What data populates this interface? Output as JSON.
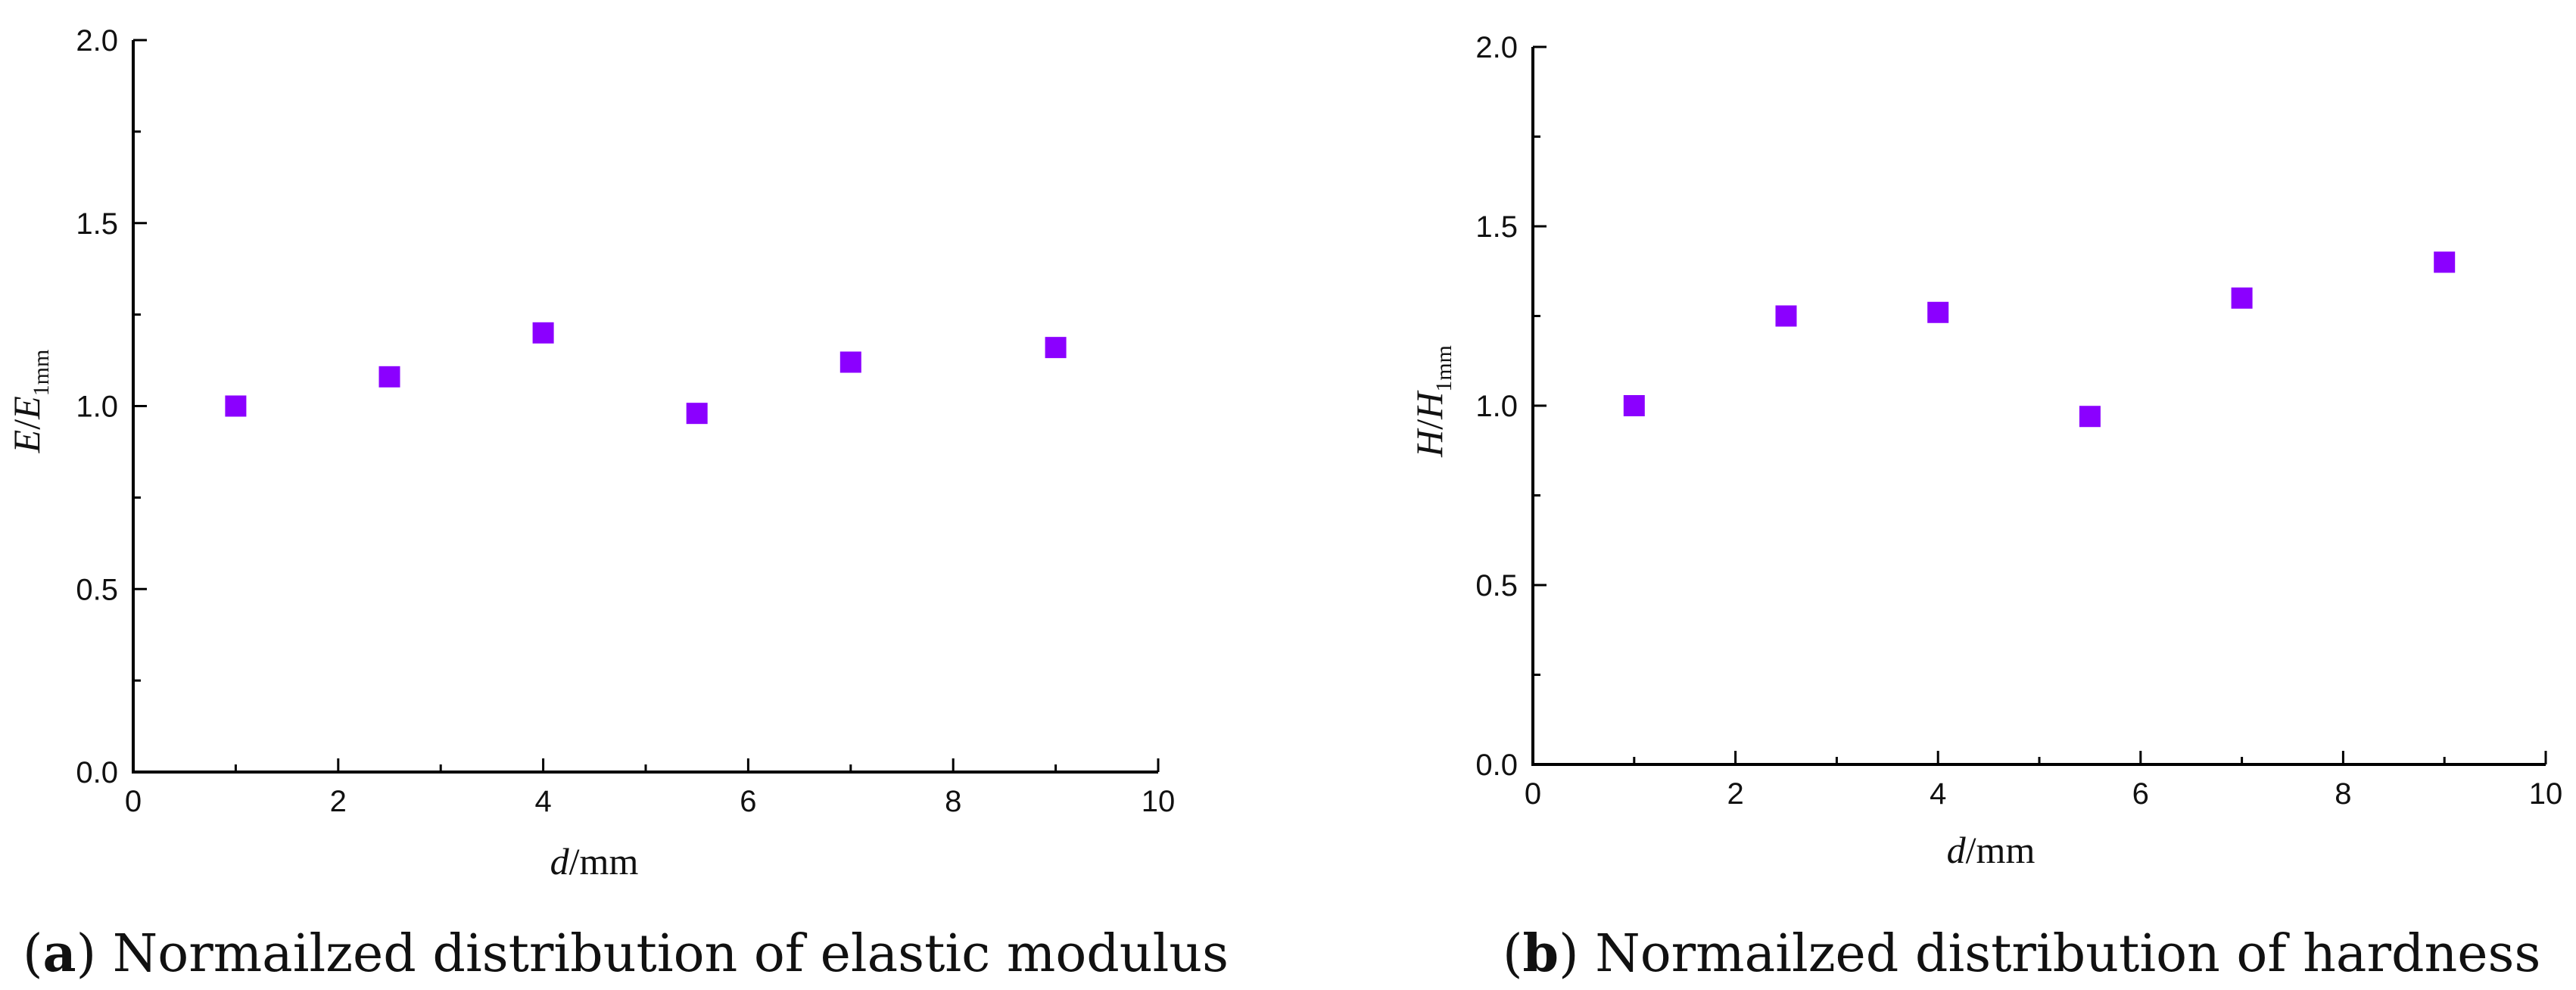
{
  "chart_data": [
    {
      "type": "scatter",
      "caption_letter": "a",
      "caption_text": "Normailzed distribution of elastic modulus",
      "xlabel": {
        "var": "d",
        "unit": "/mm"
      },
      "ylabel": {
        "var": "E",
        "sep": "/",
        "var2": "E",
        "sub": "1mm"
      },
      "xlim": [
        0,
        10
      ],
      "ylim": [
        0,
        2.0
      ],
      "xticks": [
        "0",
        "2",
        "4",
        "6",
        "8",
        "10"
      ],
      "yticks": [
        "0.0",
        "0.5",
        "1.0",
        "1.5",
        "2.0"
      ],
      "grid": false,
      "marker": "square",
      "color": "#8B00FF",
      "x": [
        1,
        2.5,
        4,
        5.5,
        7,
        9
      ],
      "y": [
        1.0,
        1.08,
        1.2,
        0.98,
        1.12,
        1.16
      ]
    },
    {
      "type": "scatter",
      "caption_letter": "b",
      "caption_text": "Normailzed distribution of hardness",
      "xlabel": {
        "var": "d",
        "unit": "/mm"
      },
      "ylabel": {
        "var": "H",
        "sep": "/",
        "var2": "H",
        "sub": "1mm"
      },
      "xlim": [
        0,
        10
      ],
      "ylim": [
        0,
        2.0
      ],
      "xticks": [
        "0",
        "2",
        "4",
        "6",
        "8",
        "10"
      ],
      "yticks": [
        "0.0",
        "0.5",
        "1.0",
        "1.5",
        "2.0"
      ],
      "grid": false,
      "marker": "square",
      "color": "#8B00FF",
      "x": [
        1,
        2.5,
        4,
        5.5,
        7,
        9
      ],
      "y": [
        1.0,
        1.25,
        1.26,
        0.97,
        1.3,
        1.4
      ]
    }
  ]
}
